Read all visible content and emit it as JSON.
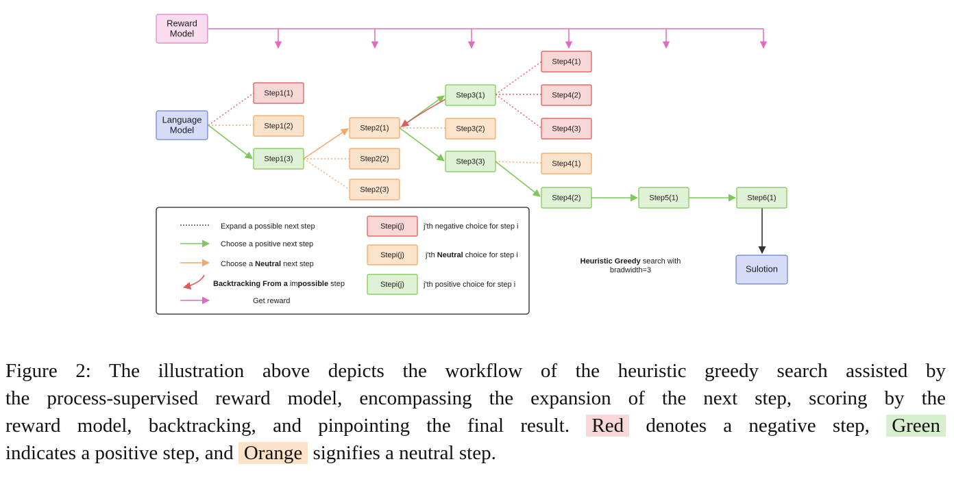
{
  "diagram": {
    "reward_model": "Reward\nModel",
    "language_model": "Language\nModel",
    "solution": "Sulotion",
    "steps": {
      "s1_1": "Step1(1)",
      "s1_2": "Step1(2)",
      "s1_3": "Step1(3)",
      "s2_1": "Step2(1)",
      "s2_2": "Step2(2)",
      "s2_3": "Step2(3)",
      "s3_1": "Step3(1)",
      "s3_2": "Step3(2)",
      "s3_3": "Step3(3)",
      "s4_1a": "Step4(1)",
      "s4_2a": "Step4(2)",
      "s4_3": "Step4(3)",
      "s4_1b": "Step4(1)",
      "s4_2b": "Step4(2)",
      "s5_1": "Step5(1)",
      "s6_1": "Step6(1)"
    },
    "legend": {
      "expand": "Expand a possible next step",
      "positive_pre": "Choose a positive next step",
      "neutral_pre": "Choose a ",
      "neutral_bold": "Neutral",
      "neutral_post": " next step",
      "backtrack_bold": "Backtracking From a ",
      "backtrack_mid": "im",
      "backtrack_bold2": "possible",
      "backtrack_post": "  step",
      "reward": "Get reward",
      "box_label": "Stepi(j)",
      "negative_desc": "j'th negative choice for step i",
      "neutral_desc_pre": "j'th ",
      "neutral_desc_bold": "Neutral",
      "neutral_desc_post": " choice for step i",
      "positive_desc": "j'th positive choice for step i"
    },
    "note": {
      "bold": "Heuristic Greedy",
      "rest": " search with",
      "line2": "bradwidth=3"
    }
  },
  "colors": {
    "red_fill": "#f8d7d7",
    "red_stroke": "#d9534f",
    "orange_fill": "#fbe3cc",
    "orange_stroke": "#f0a35b",
    "green_fill": "#dff2d6",
    "green_stroke": "#7ac74f",
    "blue_fill": "#d6dbf7",
    "blue_stroke": "#6a7fd8",
    "pink_fill": "#f9dcee",
    "pink_stroke": "#e27fc4",
    "pink_line": "#e36bbf",
    "green_line": "#7cc95a",
    "orange_line": "#f2a86a",
    "red_line": "#e05b5b"
  },
  "caption": {
    "line1": "Figure 2:  The illustration above depicts the workflow of the heuristic greedy search assisted by",
    "line2": "the process-supervised reward model, encompassing the expansion of the next step, scoring by the",
    "line3_pre": "reward model, backtracking, and pinpointing the final result.",
    "red": "Red",
    "line3_mid": "denotes a negative step,",
    "green": "Green",
    "line4_pre": "indicates a positive step, and",
    "orange": "Orange",
    "line4_post": "signifies a neutral step."
  }
}
